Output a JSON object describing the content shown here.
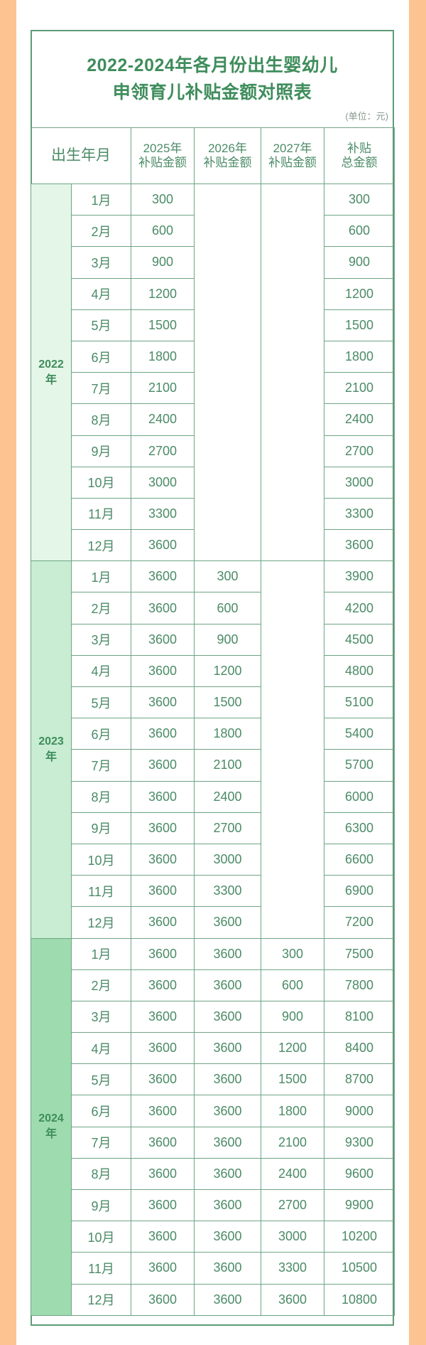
{
  "title_line1": "2022-2024年各月份出生婴幼儿",
  "title_line2": "申领育儿补贴金额对照表",
  "unit": "(单位：元)",
  "headers": {
    "birth": "出生年月",
    "y2025_a": "2025年",
    "y2025_b": "补贴金额",
    "y2026_a": "2026年",
    "y2026_b": "补贴金额",
    "y2027_a": "2027年",
    "y2027_b": "补贴金额",
    "total_a": "补贴",
    "total_b": "总金额"
  },
  "colors": {
    "border": "#5e9c78",
    "text": "#4b8b66",
    "orange": "#fdc491",
    "year2022": "#e4f6e8",
    "year2023": "#c8edd3",
    "year2024": "#9edcb0"
  },
  "years": [
    {
      "label": "2022",
      "suffix": "年",
      "rows": [
        [
          "1月",
          "300",
          "",
          "",
          "300"
        ],
        [
          "2月",
          "600",
          "",
          "",
          "600"
        ],
        [
          "3月",
          "900",
          "",
          "",
          "900"
        ],
        [
          "4月",
          "1200",
          "",
          "",
          "1200"
        ],
        [
          "5月",
          "1500",
          "",
          "",
          "1500"
        ],
        [
          "6月",
          "1800",
          "",
          "",
          "1800"
        ],
        [
          "7月",
          "2100",
          "",
          "",
          "2100"
        ],
        [
          "8月",
          "2400",
          "",
          "",
          "2400"
        ],
        [
          "9月",
          "2700",
          "",
          "",
          "2700"
        ],
        [
          "10月",
          "3000",
          "",
          "",
          "3000"
        ],
        [
          "11月",
          "3300",
          "",
          "",
          "3300"
        ],
        [
          "12月",
          "3600",
          "",
          "",
          "3600"
        ]
      ]
    },
    {
      "label": "2023",
      "suffix": "年",
      "rows": [
        [
          "1月",
          "3600",
          "300",
          "",
          "3900"
        ],
        [
          "2月",
          "3600",
          "600",
          "",
          "4200"
        ],
        [
          "3月",
          "3600",
          "900",
          "",
          "4500"
        ],
        [
          "4月",
          "3600",
          "1200",
          "",
          "4800"
        ],
        [
          "5月",
          "3600",
          "1500",
          "",
          "5100"
        ],
        [
          "6月",
          "3600",
          "1800",
          "",
          "5400"
        ],
        [
          "7月",
          "3600",
          "2100",
          "",
          "5700"
        ],
        [
          "8月",
          "3600",
          "2400",
          "",
          "6000"
        ],
        [
          "9月",
          "3600",
          "2700",
          "",
          "6300"
        ],
        [
          "10月",
          "3600",
          "3000",
          "",
          "6600"
        ],
        [
          "11月",
          "3600",
          "3300",
          "",
          "6900"
        ],
        [
          "12月",
          "3600",
          "3600",
          "",
          "7200"
        ]
      ]
    },
    {
      "label": "2024",
      "suffix": "年",
      "rows": [
        [
          "1月",
          "3600",
          "3600",
          "300",
          "7500"
        ],
        [
          "2月",
          "3600",
          "3600",
          "600",
          "7800"
        ],
        [
          "3月",
          "3600",
          "3600",
          "900",
          "8100"
        ],
        [
          "4月",
          "3600",
          "3600",
          "1200",
          "8400"
        ],
        [
          "5月",
          "3600",
          "3600",
          "1500",
          "8700"
        ],
        [
          "6月",
          "3600",
          "3600",
          "1800",
          "9000"
        ],
        [
          "7月",
          "3600",
          "3600",
          "2100",
          "9300"
        ],
        [
          "8月",
          "3600",
          "3600",
          "2400",
          "9600"
        ],
        [
          "9月",
          "3600",
          "3600",
          "2700",
          "9900"
        ],
        [
          "10月",
          "3600",
          "3600",
          "3000",
          "10200"
        ],
        [
          "11月",
          "3600",
          "3600",
          "3300",
          "10500"
        ],
        [
          "12月",
          "3600",
          "3600",
          "3600",
          "10800"
        ]
      ]
    }
  ]
}
